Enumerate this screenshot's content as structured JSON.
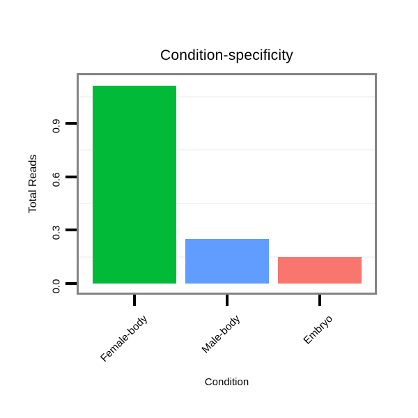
{
  "chart_data": {
    "type": "bar",
    "title": "Condition-specificity",
    "xlabel": "Condition",
    "ylabel": "Total Reads",
    "categories": [
      "Female-body",
      "Male-body",
      "Embryo"
    ],
    "values": [
      1.11,
      0.25,
      0.15
    ],
    "bar_colors": [
      "#00BA38",
      "#619CFF",
      "#F8766D"
    ],
    "y_ticks": [
      0.0,
      0.3,
      0.6,
      0.9
    ],
    "y_tick_labels": [
      "0.0",
      "0.3",
      "0.6",
      "0.9"
    ],
    "ylim": [
      -0.05,
      1.17
    ],
    "minor_gridlines": [
      0.15,
      0.45,
      0.75,
      1.05
    ],
    "grid": "minor horizontal gridlines only, very light gray",
    "legend_position": "none",
    "panel_border_color": "#838383",
    "gridline_color": "#f4f4f4",
    "tick_color": "#000000",
    "background_color": "#ffffff"
  }
}
